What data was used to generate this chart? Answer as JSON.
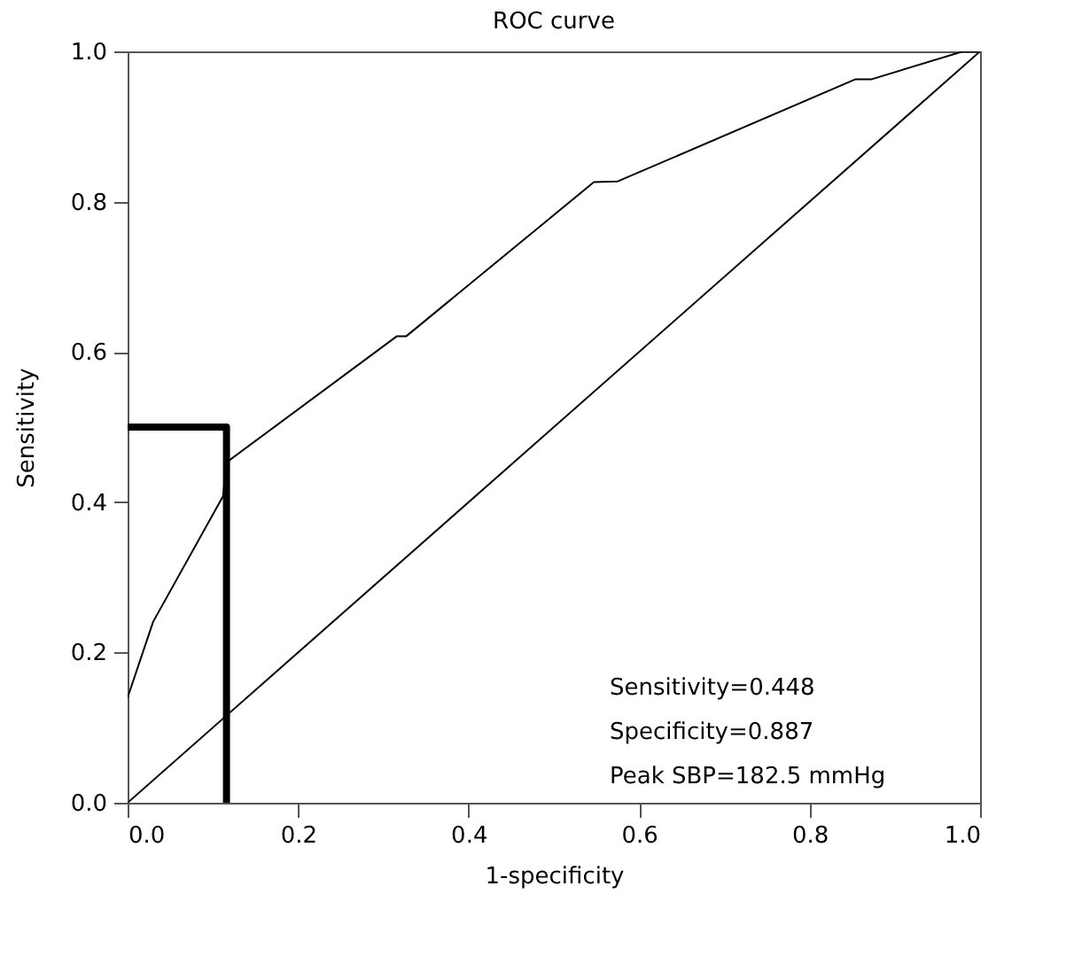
{
  "chart_data": {
    "type": "line",
    "title": "ROC curve",
    "xlabel": "1-specificity",
    "ylabel": "Sensitivity",
    "xlim": [
      0,
      1
    ],
    "ylim": [
      0,
      1
    ],
    "xticks": [
      {
        "value": 0,
        "label": "0.0"
      },
      0.2,
      0.4,
      0.6,
      0.8,
      {
        "value": 1,
        "label": "1.0"
      }
    ],
    "yticks": [
      {
        "value": 0,
        "label": "0.0"
      },
      0.2,
      0.4,
      0.6,
      0.8,
      {
        "value": 1,
        "label": "1.0"
      }
    ],
    "grid": false,
    "marker": "none",
    "series": [
      {
        "color": "#000000",
        "x": [
          0,
          0.03,
          0.112,
          0.116,
          0.316,
          0.327,
          0.547,
          0.575,
          0.854,
          0.873,
          0.98,
          1
        ],
        "values": [
          0.14,
          0.241,
          0.408,
          0.453,
          0.621,
          0.621,
          0.826,
          0.827,
          0.963,
          0.963,
          1,
          1
        ]
      },
      {
        "color": "#000000",
        "x": [
          0,
          1
        ],
        "values": [
          0,
          1
        ]
      },
      {
        "color": "#000000",
        "x": [
          0,
          0.116,
          0.116
        ],
        "values": [
          0.5,
          0.5,
          0
        ]
      }
    ],
    "annotations": [
      "Sensitivity=0.448",
      "Specificity=0.887",
      "Peak SBP=182.5 mmHg"
    ]
  }
}
